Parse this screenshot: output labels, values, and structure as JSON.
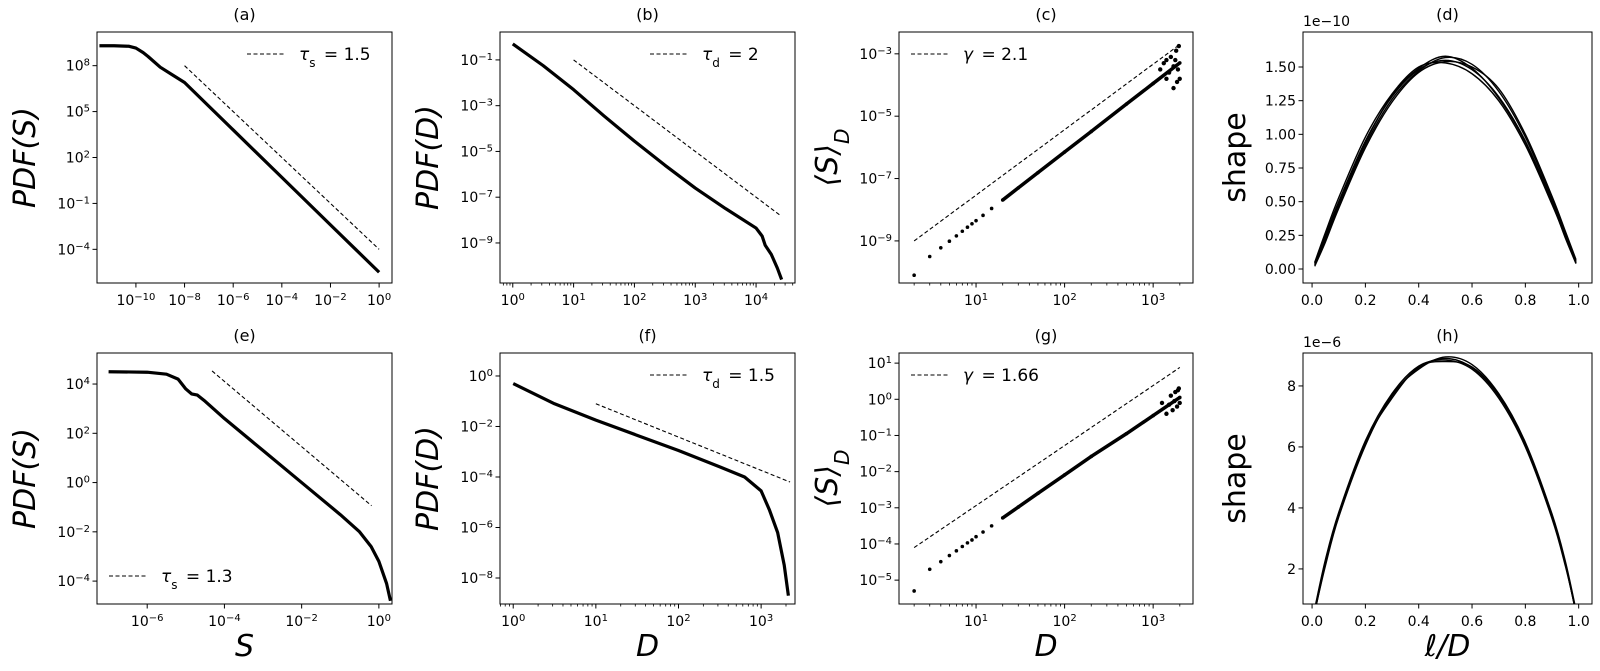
{
  "chart_data": [
    {
      "id": "a",
      "type": "line",
      "title": "(a)",
      "xscale": "log",
      "yscale": "log",
      "ylabel": "PDF(S)",
      "xlabel": "",
      "xlim_log10": [
        -11.6,
        0.53
      ],
      "ylim_log10": [
        -6.2,
        10.2
      ],
      "x_ticks_log10": [
        -10,
        -8,
        -6,
        -4,
        -2,
        0
      ],
      "y_ticks_log10": [
        -4,
        -1,
        2,
        5,
        8
      ],
      "series": [
        {
          "name": "data",
          "points_log10": [
            [
              -11.5,
              9.3
            ],
            [
              -10.9,
              9.3
            ],
            [
              -10.3,
              9.27
            ],
            [
              -10,
              9.15
            ],
            [
              -9.7,
              8.85
            ],
            [
              -9.5,
              8.6
            ],
            [
              -9,
              7.9
            ],
            [
              -8.5,
              7.4
            ],
            [
              -8,
              6.9
            ],
            [
              -7,
              5.35
            ],
            [
              -6,
              3.8
            ],
            [
              -5,
              2.25
            ],
            [
              -4,
              0.7
            ],
            [
              -3,
              -0.85
            ],
            [
              -2,
              -2.4
            ],
            [
              -1,
              -3.95
            ],
            [
              0,
              -5.5
            ]
          ]
        }
      ],
      "reference": {
        "points_log10": [
          [
            -8,
            8
          ],
          [
            0,
            -4
          ]
        ],
        "symbol": "τ",
        "sub": "s",
        "text": "= 1.5",
        "legend": "top-right"
      }
    },
    {
      "id": "b",
      "type": "line",
      "title": "(b)",
      "xscale": "log",
      "yscale": "log",
      "ylabel": "PDF(D)",
      "xlabel": "",
      "xlim_log10": [
        -0.21,
        4.64
      ],
      "ylim_log10": [
        -10.75,
        0.22
      ],
      "x_ticks_log10": [
        0,
        1,
        2,
        3,
        4
      ],
      "y_ticks_log10": [
        -9,
        -7,
        -5,
        -3,
        -1
      ],
      "series": [
        {
          "name": "data",
          "points_log10": [
            [
              0,
              -0.3
            ],
            [
              0.5,
              -1.25
            ],
            [
              1,
              -2.3
            ],
            [
              1.5,
              -3.45
            ],
            [
              2,
              -4.55
            ],
            [
              2.5,
              -5.6
            ],
            [
              3,
              -6.6
            ],
            [
              3.5,
              -7.5
            ],
            [
              4,
              -8.35
            ],
            [
              4.1,
              -8.7
            ],
            [
              4.15,
              -9.1
            ],
            [
              4.25,
              -9.5
            ],
            [
              4.35,
              -10.1
            ],
            [
              4.42,
              -10.6
            ]
          ]
        }
      ],
      "reference": {
        "points_log10": [
          [
            1,
            -1
          ],
          [
            4.4,
            -7.8
          ]
        ],
        "symbol": "τ",
        "sub": "d",
        "text": "= 2",
        "legend": "top-right"
      }
    },
    {
      "id": "c",
      "type": "scatter",
      "title": "(c)",
      "xscale": "log",
      "yscale": "log",
      "ylabel": "⟨S⟩",
      "ylabel_sub": "D",
      "xlabel": "",
      "xlim_log10": [
        0.13,
        3.45
      ],
      "ylim_log10": [
        -10.35,
        -2.3
      ],
      "x_ticks_log10": [
        1,
        2,
        3
      ],
      "y_ticks_log10": [
        -9,
        -7,
        -5,
        -3
      ],
      "series": [
        {
          "name": "data",
          "points_log10": [
            [
              0.301,
              -10.1
            ],
            [
              0.477,
              -9.5
            ],
            [
              0.602,
              -9.22
            ],
            [
              0.699,
              -9.01
            ],
            [
              0.778,
              -8.84
            ],
            [
              0.845,
              -8.69
            ],
            [
              0.903,
              -8.56
            ],
            [
              0.954,
              -8.45
            ],
            [
              1,
              -8.35
            ],
            [
              1.079,
              -8.18
            ],
            [
              1.176,
              -7.96
            ],
            [
              1.301,
              -7.69
            ],
            [
              1.477,
              -7.3
            ],
            [
              1.699,
              -6.81
            ],
            [
              2,
              -6.15
            ],
            [
              2.301,
              -5.49
            ],
            [
              2.699,
              -4.61
            ],
            [
              3,
              -3.95
            ],
            [
              3.301,
              -3.29
            ]
          ],
          "scatter_log10": [
            [
              3.08,
              -3.5
            ],
            [
              3.15,
              -3.2
            ],
            [
              3.18,
              -3.6
            ],
            [
              3.2,
              -3.1
            ],
            [
              3.23,
              -3.4
            ],
            [
              3.26,
              -2.9
            ],
            [
              3.28,
              -3.5
            ],
            [
              3.29,
              -2.75
            ],
            [
              3.3,
              -3.8
            ],
            [
              3.23,
              -4.1
            ],
            [
              3.27,
              -3.9
            ],
            [
              3.15,
              -3.8
            ],
            [
              3.12,
              -3.3
            ],
            [
              3.25,
              -3.2
            ]
          ]
        }
      ],
      "reference": {
        "points_log10": [
          [
            0.301,
            -9
          ],
          [
            3.301,
            -2.7
          ]
        ],
        "symbol": "γ",
        "sub": "",
        "text": "= 2.1",
        "legend": "top-left"
      }
    },
    {
      "id": "d",
      "type": "line",
      "title": "(d)",
      "xscale": "linear",
      "yscale": "linear",
      "ylabel": "shape",
      "xlabel": "",
      "offset_text": "1e−10",
      "xlim": [
        -0.034,
        1.05
      ],
      "ylim": [
        -0.104,
        1.76
      ],
      "x_ticks": [
        0,
        0.2,
        0.4,
        0.6,
        0.8,
        1.0
      ],
      "x_tick_labels": [
        "0.0",
        "0.2",
        "0.4",
        "0.6",
        "0.8",
        "1.0"
      ],
      "y_ticks": [
        0,
        0.25,
        0.5,
        0.75,
        1.0,
        1.25,
        1.5
      ],
      "y_tick_labels": [
        "0.00",
        "0.25",
        "0.50",
        "0.75",
        "1.00",
        "1.25",
        "1.50"
      ],
      "x": [
        0.01,
        0.05,
        0.1,
        0.2,
        0.3,
        0.4,
        0.5,
        0.6,
        0.7,
        0.8,
        0.9,
        0.95,
        0.99
      ],
      "series": [
        {
          "name": "curve-1",
          "values": [
            0.044,
            0.25,
            0.5,
            0.95,
            1.28,
            1.48,
            1.55,
            1.48,
            1.28,
            0.95,
            0.5,
            0.25,
            0.044
          ]
        },
        {
          "name": "curve-2",
          "values": [
            0.03,
            0.22,
            0.47,
            0.92,
            1.26,
            1.47,
            1.57,
            1.52,
            1.32,
            0.98,
            0.52,
            0.27,
            0.06
          ]
        },
        {
          "name": "curve-3",
          "values": [
            0.02,
            0.2,
            0.45,
            0.9,
            1.24,
            1.46,
            1.54,
            1.5,
            1.34,
            1.0,
            0.54,
            0.28,
            0.07
          ]
        },
        {
          "name": "curve-4",
          "values": [
            0.05,
            0.27,
            0.53,
            0.98,
            1.3,
            1.5,
            1.53,
            1.45,
            1.25,
            0.92,
            0.48,
            0.24,
            0.05
          ]
        },
        {
          "name": "curve-5",
          "values": [
            0.04,
            0.24,
            0.49,
            0.94,
            1.29,
            1.49,
            1.58,
            1.49,
            1.27,
            0.94,
            0.49,
            0.23,
            0.04
          ]
        }
      ]
    },
    {
      "id": "e",
      "type": "line",
      "title": "(e)",
      "xscale": "log",
      "yscale": "log",
      "ylabel": "PDF(S)",
      "xlabel": "S",
      "xlim_log10": [
        -7.3,
        0.34
      ],
      "ylim_log10": [
        -4.93,
        5.26
      ],
      "x_ticks_log10": [
        -6,
        -4,
        -2,
        0
      ],
      "y_ticks_log10": [
        -4,
        -2,
        0,
        2,
        4
      ],
      "series": [
        {
          "name": "data",
          "points_log10": [
            [
              -7,
              4.5
            ],
            [
              -6,
              4.48
            ],
            [
              -5.5,
              4.4
            ],
            [
              -5.2,
              4.2
            ],
            [
              -5,
              3.8
            ],
            [
              -4.85,
              3.6
            ],
            [
              -4.7,
              3.55
            ],
            [
              -4.5,
              3.3
            ],
            [
              -4,
              2.6
            ],
            [
              -3,
              1.3
            ],
            [
              -2,
              0.0
            ],
            [
              -1,
              -1.3
            ],
            [
              -0.5,
              -2.0
            ],
            [
              -0.2,
              -2.6
            ],
            [
              0,
              -3.2
            ],
            [
              0.2,
              -4.1
            ],
            [
              0.3,
              -4.8
            ]
          ]
        }
      ],
      "reference": {
        "points_log10": [
          [
            -4.32,
            4.53
          ],
          [
            -0.19,
            -0.94
          ]
        ],
        "symbol": "τ",
        "sub": "s",
        "text": "= 1.3",
        "legend": "bottom-left"
      }
    },
    {
      "id": "f",
      "type": "line",
      "title": "(f)",
      "xscale": "log",
      "yscale": "log",
      "ylabel": "PDF(D)",
      "xlabel": "D",
      "xlim_log10": [
        -0.16,
        3.41
      ],
      "ylim_log10": [
        -9.03,
        0.91
      ],
      "x_ticks_log10": [
        0,
        1,
        2,
        3
      ],
      "y_ticks_log10": [
        -8,
        -6,
        -4,
        -2,
        0
      ],
      "series": [
        {
          "name": "data",
          "points_log10": [
            [
              0,
              -0.3
            ],
            [
              0.5,
              -1.1
            ],
            [
              1,
              -1.75
            ],
            [
              1.5,
              -2.35
            ],
            [
              2,
              -2.95
            ],
            [
              2.5,
              -3.6
            ],
            [
              2.8,
              -4.0
            ],
            [
              3,
              -4.55
            ],
            [
              3.1,
              -5.3
            ],
            [
              3.2,
              -6.2
            ],
            [
              3.28,
              -7.5
            ],
            [
              3.33,
              -8.7
            ]
          ]
        }
      ],
      "reference": {
        "points_log10": [
          [
            1,
            -1.1
          ],
          [
            3.35,
            -4.2
          ]
        ],
        "symbol": "τ",
        "sub": "d",
        "text": "= 1.5",
        "legend": "top-right"
      }
    },
    {
      "id": "g",
      "type": "scatter",
      "title": "(g)",
      "xscale": "log",
      "yscale": "log",
      "ylabel": "⟨S⟩",
      "ylabel_sub": "D",
      "xlabel": "D",
      "xlim_log10": [
        0.13,
        3.45
      ],
      "ylim_log10": [
        -5.66,
        1.28
      ],
      "x_ticks_log10": [
        1,
        2,
        3
      ],
      "y_ticks_log10": [
        -5,
        -4,
        -3,
        -2,
        -1,
        0,
        1
      ],
      "series": [
        {
          "name": "data",
          "points_log10": [
            [
              0.301,
              -5.3
            ],
            [
              0.477,
              -4.7
            ],
            [
              0.602,
              -4.49
            ],
            [
              0.699,
              -4.32
            ],
            [
              0.778,
              -4.19
            ],
            [
              0.845,
              -4.07
            ],
            [
              0.903,
              -3.97
            ],
            [
              0.954,
              -3.89
            ],
            [
              1,
              -3.8
            ],
            [
              1.079,
              -3.67
            ],
            [
              1.176,
              -3.5
            ],
            [
              1.301,
              -3.28
            ],
            [
              1.477,
              -2.98
            ],
            [
              1.699,
              -2.6
            ],
            [
              2,
              -2.09
            ],
            [
              2.301,
              -1.58
            ],
            [
              2.699,
              -0.95
            ],
            [
              3,
              -0.45
            ],
            [
              3.301,
              0.05
            ]
          ],
          "scatter_log10": [
            [
              3.1,
              -0.1
            ],
            [
              3.15,
              -0.4
            ],
            [
              3.2,
              0.1
            ],
            [
              3.22,
              -0.3
            ],
            [
              3.25,
              0.2
            ],
            [
              3.27,
              -0.2
            ],
            [
              3.28,
              0.25
            ],
            [
              3.3,
              -0.1
            ],
            [
              3.29,
              0.3
            ],
            [
              3.18,
              -0.15
            ],
            [
              3.24,
              -0.05
            ]
          ]
        }
      ],
      "reference": {
        "points_log10": [
          [
            0.301,
            -4.1
          ],
          [
            3.301,
            0.88
          ]
        ],
        "symbol": "γ",
        "sub": "",
        "text": "= 1.66",
        "legend": "top-left"
      }
    },
    {
      "id": "h",
      "type": "line",
      "title": "(h)",
      "xscale": "linear",
      "yscale": "linear",
      "ylabel": "shape",
      "xlabel": "ℓ/D",
      "offset_text": "1e−6",
      "xlim": [
        -0.034,
        1.05
      ],
      "ylim": [
        0.85,
        9.08
      ],
      "x_ticks": [
        0,
        0.2,
        0.4,
        0.6,
        0.8,
        1.0
      ],
      "x_tick_labels": [
        "0.0",
        "0.2",
        "0.4",
        "0.6",
        "0.8",
        "1.0"
      ],
      "y_ticks": [
        2,
        4,
        6,
        8
      ],
      "y_tick_labels": [
        "2",
        "4",
        "6",
        "8"
      ],
      "x": [
        0.01,
        0.05,
        0.1,
        0.2,
        0.3,
        0.4,
        0.5,
        0.6,
        0.7,
        0.8,
        0.9,
        0.95,
        0.99
      ],
      "series": [
        {
          "name": "curve-1",
          "values": [
            0.57,
            2.17,
            3.74,
            6.09,
            7.67,
            8.6,
            8.9,
            8.6,
            7.67,
            6.09,
            3.74,
            2.17,
            0.57
          ]
        },
        {
          "name": "curve-2",
          "values": [
            0.7,
            2.3,
            3.85,
            6.2,
            7.75,
            8.65,
            8.85,
            8.55,
            7.6,
            6.0,
            3.65,
            2.1,
            0.6
          ]
        },
        {
          "name": "curve-3",
          "values": [
            0.6,
            2.1,
            3.7,
            6.05,
            7.7,
            8.55,
            8.95,
            8.7,
            7.75,
            6.15,
            3.8,
            2.25,
            0.65
          ]
        },
        {
          "name": "curve-4",
          "values": [
            0.65,
            2.25,
            3.8,
            6.15,
            7.6,
            8.62,
            8.8,
            8.62,
            7.7,
            6.05,
            3.7,
            2.15,
            0.55
          ]
        }
      ]
    }
  ]
}
